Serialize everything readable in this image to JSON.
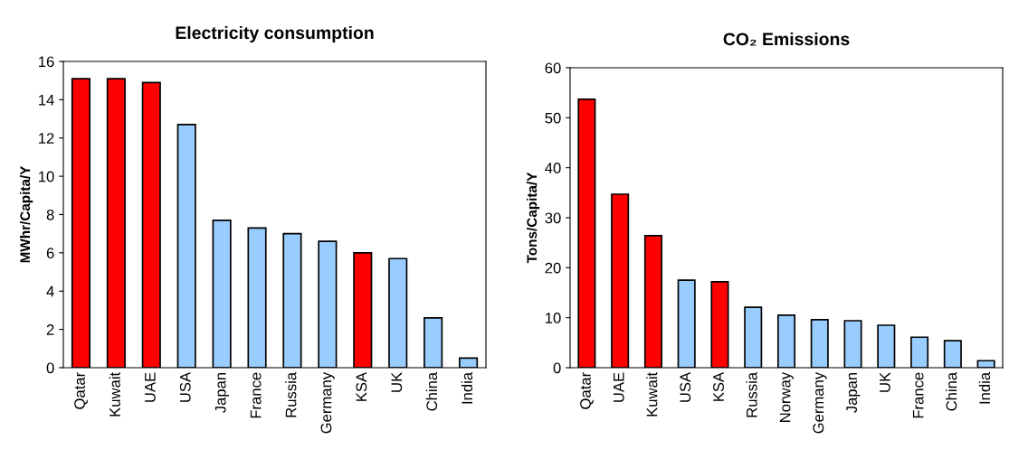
{
  "chart_data": [
    {
      "type": "bar",
      "title": "Electricity consumption",
      "ylabel": "MWhr/Capita/Y",
      "categories": [
        "Qatar",
        "Kuwait",
        "UAE",
        "USA",
        "Japan",
        "France",
        "Russia",
        "Germany",
        "KSA",
        "UK",
        "China",
        "India"
      ],
      "values": [
        15.1,
        15.1,
        14.9,
        12.7,
        7.7,
        7.3,
        7.0,
        6.6,
        6.0,
        5.7,
        2.6,
        0.5
      ],
      "colors": [
        "#ff0000",
        "#ff0000",
        "#ff0000",
        "#99ccff",
        "#99ccff",
        "#99ccff",
        "#99ccff",
        "#99ccff",
        "#ff0000",
        "#99ccff",
        "#99ccff",
        "#99ccff"
      ],
      "ylim": [
        0,
        16
      ],
      "yticks": [
        0,
        2,
        4,
        6,
        8,
        10,
        12,
        14,
        16
      ],
      "grid": false
    },
    {
      "type": "bar",
      "title": "CO₂ Emissions",
      "ylabel": "Tons/Capita/Y",
      "categories": [
        "Qatar",
        "UAE",
        "Kuwait",
        "USA",
        "KSA",
        "Russia",
        "Norway",
        "Germany",
        "Japan",
        "UK",
        "France",
        "China",
        "India"
      ],
      "values": [
        53.7,
        34.7,
        26.4,
        17.5,
        17.2,
        12.1,
        10.5,
        9.6,
        9.4,
        8.5,
        6.1,
        5.4,
        1.4
      ],
      "colors": [
        "#ff0000",
        "#ff0000",
        "#ff0000",
        "#99ccff",
        "#ff0000",
        "#99ccff",
        "#99ccff",
        "#99ccff",
        "#99ccff",
        "#99ccff",
        "#99ccff",
        "#99ccff",
        "#99ccff"
      ],
      "ylim": [
        0,
        60
      ],
      "yticks": [
        0,
        10,
        20,
        30,
        40,
        50,
        60
      ],
      "grid": false
    }
  ]
}
